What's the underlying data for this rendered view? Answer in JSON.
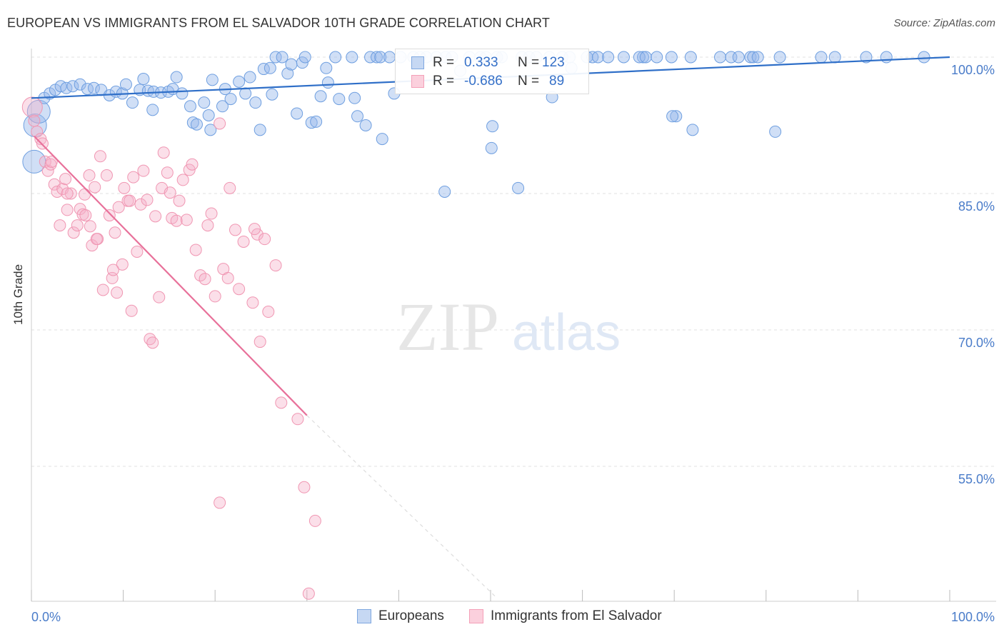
{
  "title": "EUROPEAN VS IMMIGRANTS FROM EL SALVADOR 10TH GRADE CORRELATION CHART",
  "source": "Source: ZipAtlas.com",
  "watermark": {
    "zip": "ZIP",
    "atlas": "atlas"
  },
  "legend": {
    "r_label": "R =",
    "n_label": "N =",
    "rows": [
      {
        "r": "0.333",
        "n": "123",
        "color": "#7fa8e0"
      },
      {
        "r": "-0.686",
        "n": "89",
        "color": "#f4a0b8"
      }
    ]
  },
  "colors": {
    "blue": "#6f9fe0",
    "pink": "#f096b2",
    "blue_line": "#2f6fc8",
    "pink_line": "#e8719a",
    "tick_label": "#4a7cc9"
  },
  "chart_data": {
    "type": "scatter",
    "title": "EUROPEAN VS IMMIGRANTS FROM EL SALVADOR 10TH GRADE CORRELATION CHART",
    "xlabel": "",
    "ylabel": "10th Grade",
    "xlim": [
      0,
      100
    ],
    "ylim": [
      41,
      102
    ],
    "x_tick_labels": [
      "0.0%",
      "100.0%"
    ],
    "y_ticks": [
      55,
      70,
      85,
      100
    ],
    "y_tick_labels": [
      "55.0%",
      "70.0%",
      "85.0%",
      "100.0%"
    ],
    "grid": true,
    "legend_position": "top-center",
    "series": [
      {
        "name": "Europeans",
        "r": 0.333,
        "n": 123,
        "trend": {
          "x": [
            0,
            100
          ],
          "y": [
            95.5,
            100.0
          ]
        },
        "points": [
          [
            0.3,
            88.5
          ],
          [
            0.4,
            92.5
          ],
          [
            0.8,
            94
          ],
          [
            1.4,
            95.5
          ],
          [
            2,
            96
          ],
          [
            2.6,
            96.4
          ],
          [
            3.2,
            96.8
          ],
          [
            3.8,
            96.6
          ],
          [
            4.5,
            96.8
          ],
          [
            5.3,
            97
          ],
          [
            6.1,
            96.5
          ],
          [
            6.8,
            96.6
          ],
          [
            7.6,
            96.4
          ],
          [
            8.5,
            95.8
          ],
          [
            9.2,
            96.2
          ],
          [
            9.9,
            96
          ],
          [
            10.3,
            97
          ],
          [
            11,
            95
          ],
          [
            11.8,
            96.4
          ],
          [
            12.2,
            97.6
          ],
          [
            12.7,
            96.3
          ],
          [
            13.3,
            96.2
          ],
          [
            13.2,
            94.2
          ],
          [
            14.1,
            96.1
          ],
          [
            14.9,
            96.2
          ],
          [
            15.4,
            96.5
          ],
          [
            15.8,
            97.8
          ],
          [
            16.4,
            96
          ],
          [
            17.3,
            94.6
          ],
          [
            17.6,
            92.8
          ],
          [
            18,
            92.6
          ],
          [
            18.8,
            95
          ],
          [
            19.3,
            93.6
          ],
          [
            19.5,
            92
          ],
          [
            19.7,
            97.5
          ],
          [
            20.8,
            94.6
          ],
          [
            21.1,
            96.5
          ],
          [
            21.7,
            95.4
          ],
          [
            22.6,
            97.3
          ],
          [
            23.3,
            96
          ],
          [
            23.8,
            97.8
          ],
          [
            24.4,
            95
          ],
          [
            24.9,
            92
          ],
          [
            25.3,
            98.7
          ],
          [
            26,
            98.8
          ],
          [
            26.2,
            95.9
          ],
          [
            26.6,
            100
          ],
          [
            27.3,
            100
          ],
          [
            27.9,
            98.2
          ],
          [
            28.3,
            99.2
          ],
          [
            28.9,
            93.8
          ],
          [
            29.5,
            99.4
          ],
          [
            29.8,
            100
          ],
          [
            30.5,
            92.8
          ],
          [
            31,
            92.9
          ],
          [
            31.5,
            95.7
          ],
          [
            32.1,
            98.8
          ],
          [
            32.3,
            97.2
          ],
          [
            33.1,
            100
          ],
          [
            33.5,
            95.4
          ],
          [
            34.9,
            100
          ],
          [
            35.2,
            95.5
          ],
          [
            35.5,
            93.5
          ],
          [
            36.4,
            92.5
          ],
          [
            36.9,
            100
          ],
          [
            37.6,
            100
          ],
          [
            38,
            100
          ],
          [
            38.2,
            91
          ],
          [
            39,
            100
          ],
          [
            39.5,
            96
          ],
          [
            40.2,
            100
          ],
          [
            41.6,
            100
          ],
          [
            42.3,
            100
          ],
          [
            43,
            100
          ],
          [
            44.1,
            100
          ],
          [
            45.1,
            100
          ],
          [
            45.8,
            100
          ],
          [
            46.7,
            98.5
          ],
          [
            47.7,
            100
          ],
          [
            48.9,
            100
          ],
          [
            49.5,
            100
          ],
          [
            50.7,
            100
          ],
          [
            51.2,
            100
          ],
          [
            53.4,
            100
          ],
          [
            54.2,
            100
          ],
          [
            55,
            100
          ],
          [
            56.4,
            100
          ],
          [
            57.8,
            100
          ],
          [
            58.8,
            98.8
          ],
          [
            58.6,
            100
          ],
          [
            60.5,
            100
          ],
          [
            61.1,
            100
          ],
          [
            61.7,
            100
          ],
          [
            62.8,
            100
          ],
          [
            64.5,
            100
          ],
          [
            66.6,
            100
          ],
          [
            66.2,
            100
          ],
          [
            66.9,
            100
          ],
          [
            68.1,
            100
          ],
          [
            69.7,
            100
          ],
          [
            70.2,
            93.5
          ],
          [
            71.8,
            100
          ],
          [
            75,
            100
          ],
          [
            76.2,
            100
          ],
          [
            77,
            100
          ],
          [
            78.3,
            100
          ],
          [
            78.6,
            100
          ],
          [
            79.1,
            100
          ],
          [
            81.5,
            100
          ],
          [
            86,
            100
          ],
          [
            87.5,
            100
          ],
          [
            90.9,
            100
          ],
          [
            93.1,
            100
          ],
          [
            97.2,
            100
          ],
          [
            45,
            85.2
          ],
          [
            50.2,
            92.4
          ],
          [
            53,
            85.6
          ],
          [
            56.7,
            95.6
          ],
          [
            69.8,
            93.5
          ],
          [
            72,
            92
          ],
          [
            81,
            91.8
          ],
          [
            50.1,
            90
          ]
        ]
      },
      {
        "name": "Immigrants from El Salvador",
        "r": -0.686,
        "n": 89,
        "trend": {
          "x": [
            0.3,
            30
          ],
          "y": [
            91.3,
            60.6
          ]
        },
        "trend_dashed": {
          "x": [
            30,
            50.5
          ],
          "y": [
            60.6,
            40.7
          ]
        },
        "points": [
          [
            0.1,
            94.5
          ],
          [
            0.3,
            93
          ],
          [
            0.6,
            91.8
          ],
          [
            1,
            91
          ],
          [
            1.2,
            90.5
          ],
          [
            1.5,
            88.5
          ],
          [
            1.8,
            87.5
          ],
          [
            2.1,
            88.2
          ],
          [
            2.5,
            86
          ],
          [
            2.8,
            85.2
          ],
          [
            3.1,
            81.5
          ],
          [
            3.4,
            85.5
          ],
          [
            3.7,
            86.6
          ],
          [
            3.9,
            83.2
          ],
          [
            4.3,
            85
          ],
          [
            4.6,
            80.7
          ],
          [
            5,
            81.5
          ],
          [
            5.3,
            83.3
          ],
          [
            5.6,
            82.7
          ],
          [
            5.9,
            82.6
          ],
          [
            6.3,
            87
          ],
          [
            6.6,
            79.3
          ],
          [
            6.9,
            85.7
          ],
          [
            7.2,
            80
          ],
          [
            7.5,
            89.1
          ],
          [
            7.8,
            74.4
          ],
          [
            8.2,
            87
          ],
          [
            8.5,
            82.6
          ],
          [
            8.8,
            75.7
          ],
          [
            9.1,
            80.7
          ],
          [
            9.5,
            83.5
          ],
          [
            9.9,
            77.2
          ],
          [
            10.1,
            85.6
          ],
          [
            10.5,
            84.2
          ],
          [
            10.9,
            72.1
          ],
          [
            11.1,
            86.8
          ],
          [
            11.5,
            78.6
          ],
          [
            11.9,
            83.8
          ],
          [
            12.2,
            87.5
          ],
          [
            12.6,
            84.3
          ],
          [
            12.9,
            69
          ],
          [
            13.2,
            68.6
          ],
          [
            13.5,
            82.5
          ],
          [
            13.9,
            73.6
          ],
          [
            14.2,
            85.6
          ],
          [
            14.4,
            89.5
          ],
          [
            14.8,
            87.3
          ],
          [
            15.1,
            85.1
          ],
          [
            15.3,
            82.3
          ],
          [
            15.8,
            82
          ],
          [
            16.1,
            84.2
          ],
          [
            16.5,
            86.5
          ],
          [
            16.9,
            82.1
          ],
          [
            17.2,
            87.6
          ],
          [
            17.5,
            88.2
          ],
          [
            17.9,
            78.8
          ],
          [
            18.4,
            76
          ],
          [
            18.9,
            75.6
          ],
          [
            19.2,
            81.5
          ],
          [
            19.6,
            82.8
          ],
          [
            20,
            73.7
          ],
          [
            20.5,
            92.7
          ],
          [
            20.9,
            76.7
          ],
          [
            21.4,
            75.7
          ],
          [
            21.6,
            85.6
          ],
          [
            22.2,
            81
          ],
          [
            22.6,
            74.5
          ],
          [
            23.1,
            79.7
          ],
          [
            24.1,
            73
          ],
          [
            24.6,
            80.5
          ],
          [
            24.9,
            68.7
          ],
          [
            25.4,
            80
          ],
          [
            25.8,
            72
          ],
          [
            26.6,
            77.1
          ],
          [
            27.2,
            62
          ],
          [
            29,
            60.2
          ],
          [
            29.7,
            52.7
          ],
          [
            30.9,
            49
          ],
          [
            20.5,
            51
          ],
          [
            30.2,
            41
          ],
          [
            5.8,
            84.9
          ],
          [
            6.4,
            81.4
          ],
          [
            7.1,
            80
          ],
          [
            8.9,
            76.6
          ],
          [
            9.3,
            74.1
          ],
          [
            24.3,
            81.1
          ],
          [
            10.7,
            84.2
          ],
          [
            3.9,
            85
          ],
          [
            2.2,
            88.5
          ]
        ]
      }
    ]
  },
  "bottom_legend": [
    "Europeans",
    "Immigrants from El Salvador"
  ]
}
